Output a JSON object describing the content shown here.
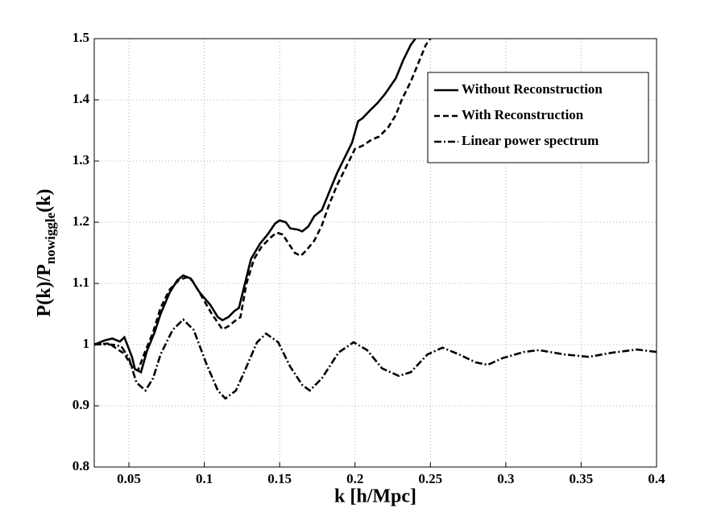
{
  "chart_data": {
    "type": "line",
    "xlabel": "k [h/Mpc]",
    "ylabel": [
      "P(k)/P",
      "nowiggle",
      "(k)"
    ],
    "xlim": [
      0.027,
      0.4
    ],
    "ylim": [
      0.8,
      1.5
    ],
    "xticks": [
      0.05,
      0.1,
      0.15,
      0.2,
      0.25,
      0.3,
      0.35,
      0.4
    ],
    "yticks": [
      0.8,
      0.9,
      1,
      1.1,
      1.2,
      1.3,
      1.4,
      1.5
    ],
    "grid": true,
    "legend": "upper right",
    "series": [
      {
        "name": "Without Reconstruction",
        "color": "#000000",
        "style": "solid",
        "x": [
          0.027,
          0.034,
          0.039,
          0.044,
          0.047,
          0.052,
          0.054,
          0.058,
          0.062,
          0.067,
          0.071,
          0.077,
          0.082,
          0.086,
          0.091,
          0.097,
          0.104,
          0.109,
          0.112,
          0.116,
          0.12,
          0.123,
          0.127,
          0.131,
          0.137,
          0.142,
          0.147,
          0.15,
          0.154,
          0.157,
          0.162,
          0.165,
          0.169,
          0.173,
          0.178,
          0.183,
          0.188,
          0.194,
          0.198,
          0.202,
          0.205,
          0.21,
          0.215,
          0.22,
          0.227,
          0.232,
          0.237,
          0.24
        ],
        "values": [
          1.0,
          1.007,
          1.01,
          1.005,
          1.012,
          0.98,
          0.96,
          0.955,
          0.99,
          1.02,
          1.05,
          1.085,
          1.105,
          1.113,
          1.108,
          1.085,
          1.065,
          1.045,
          1.04,
          1.045,
          1.055,
          1.06,
          1.1,
          1.14,
          1.165,
          1.18,
          1.198,
          1.203,
          1.2,
          1.19,
          1.188,
          1.185,
          1.193,
          1.21,
          1.22,
          1.25,
          1.28,
          1.31,
          1.33,
          1.365,
          1.37,
          1.383,
          1.395,
          1.41,
          1.435,
          1.465,
          1.49,
          1.5
        ]
      },
      {
        "name": "With Reconstruction",
        "color": "#000000",
        "style": "dashed",
        "x": [
          0.027,
          0.037,
          0.042,
          0.047,
          0.053,
          0.056,
          0.061,
          0.066,
          0.071,
          0.077,
          0.083,
          0.088,
          0.092,
          0.098,
          0.105,
          0.112,
          0.116,
          0.121,
          0.124,
          0.128,
          0.133,
          0.138,
          0.144,
          0.148,
          0.152,
          0.156,
          0.16,
          0.164,
          0.168,
          0.173,
          0.178,
          0.183,
          0.188,
          0.194,
          0.2,
          0.205,
          0.211,
          0.216,
          0.222,
          0.227,
          0.231,
          0.237,
          0.242,
          0.247,
          0.25
        ],
        "values": [
          1.0,
          1.002,
          0.993,
          0.985,
          0.96,
          0.958,
          0.99,
          1.02,
          1.06,
          1.09,
          1.105,
          1.11,
          1.105,
          1.08,
          1.05,
          1.025,
          1.03,
          1.04,
          1.045,
          1.1,
          1.14,
          1.16,
          1.175,
          1.183,
          1.18,
          1.165,
          1.15,
          1.145,
          1.155,
          1.17,
          1.195,
          1.23,
          1.26,
          1.29,
          1.32,
          1.325,
          1.335,
          1.34,
          1.355,
          1.375,
          1.4,
          1.43,
          1.46,
          1.49,
          1.5
        ]
      },
      {
        "name": "Linear power spectrum",
        "color": "#000000",
        "style": "dashdot",
        "x": [
          0.027,
          0.039,
          0.045,
          0.05,
          0.055,
          0.061,
          0.066,
          0.071,
          0.079,
          0.086,
          0.093,
          0.101,
          0.109,
          0.114,
          0.121,
          0.127,
          0.135,
          0.141,
          0.149,
          0.157,
          0.165,
          0.17,
          0.178,
          0.189,
          0.199,
          0.208,
          0.218,
          0.229,
          0.237,
          0.248,
          0.258,
          0.269,
          0.28,
          0.288,
          0.298,
          0.312,
          0.322,
          0.339,
          0.355,
          0.371,
          0.387,
          0.4
        ],
        "values": [
          1.001,
          1.0,
          0.997,
          0.978,
          0.938,
          0.925,
          0.945,
          0.984,
          1.024,
          1.041,
          1.024,
          0.971,
          0.925,
          0.912,
          0.925,
          0.958,
          1.004,
          1.018,
          1.004,
          0.964,
          0.934,
          0.925,
          0.945,
          0.987,
          1.004,
          0.991,
          0.961,
          0.949,
          0.955,
          0.984,
          0.995,
          0.984,
          0.971,
          0.967,
          0.978,
          0.988,
          0.991,
          0.984,
          0.98,
          0.987,
          0.992,
          0.988
        ]
      }
    ]
  }
}
